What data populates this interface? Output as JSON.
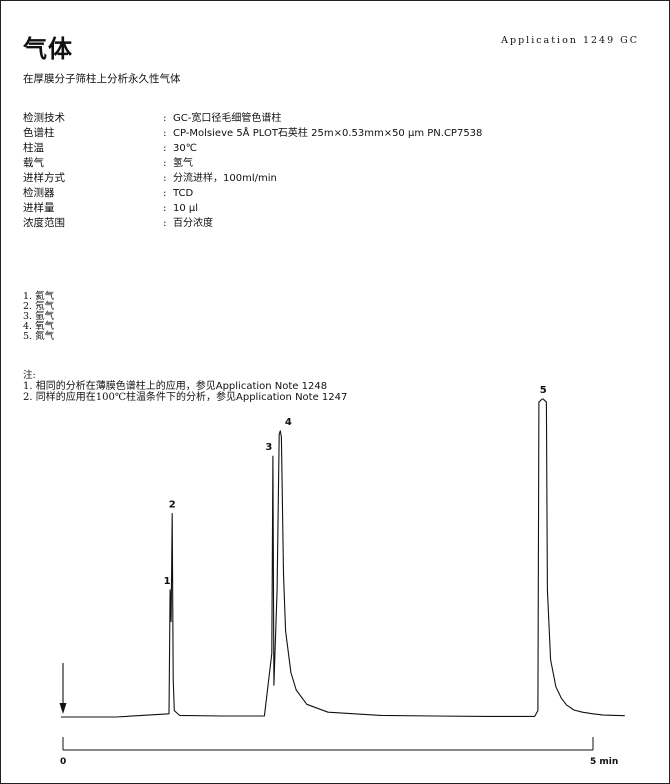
{
  "header": {
    "title": "气体",
    "application_no": "Application 1249 GC",
    "subtitle": "在厚膜分子筛柱上分析永久性气体"
  },
  "conditions": [
    {
      "label": "检测技术",
      "value": "GC-宽口径毛细管色谱柱"
    },
    {
      "label": "色谱柱",
      "value": "CP-Molsieve 5Å PLOT石英柱 25m×0.53mm×50 μm  PN.CP7538"
    },
    {
      "label": "柱温",
      "value": "30℃"
    },
    {
      "label": "载气",
      "value": "氢气"
    },
    {
      "label": "进样方式",
      "value": "分流进样，100ml/min"
    },
    {
      "label": "检测器",
      "value": "TCD"
    },
    {
      "label": "进样量",
      "value": "10 μl"
    },
    {
      "label": "浓度范围",
      "value": "百分浓度"
    }
  ],
  "colon": ":",
  "peaks": [
    {
      "num": "1",
      "name": "氦气"
    },
    {
      "num": "2",
      "name": "氖气"
    },
    {
      "num": "3",
      "name": "氩气"
    },
    {
      "num": "4",
      "name": "氧气"
    },
    {
      "num": "5",
      "name": "氮气"
    }
  ],
  "notes": {
    "heading": "注:",
    "items": [
      {
        "num": "1.",
        "text": "相同的分析在薄膜色谱柱上的应用，参见",
        "ref": "Application Note 1248"
      },
      {
        "num": "2.",
        "text": "同样的应用在100℃柱温条件下的分析，参见",
        "ref": "Application Note 1247"
      }
    ]
  },
  "chart_data": {
    "type": "line",
    "x_unit": "min",
    "xlim": [
      0,
      5
    ],
    "x_ticks": [
      {
        "value": 0,
        "label": "0"
      },
      {
        "value": 5,
        "label": "5 min"
      }
    ],
    "injection_marker": {
      "x": 0
    },
    "y_scale": "relative detector response (0 = baseline, 1 = tallest peak)",
    "peaks": [
      {
        "label": "1",
        "x": 1.01,
        "height": 0.4
      },
      {
        "label": "2",
        "x": 1.03,
        "height": 0.64
      },
      {
        "label": "3",
        "x": 1.98,
        "height": 0.82
      },
      {
        "label": "4",
        "x": 2.05,
        "height": 0.9
      },
      {
        "label": "5",
        "x": 4.53,
        "height": 1.0
      }
    ],
    "series": [
      {
        "x": [
          -0.02,
          0.5,
          1.0,
          1.01,
          1.02,
          1.03,
          1.04,
          1.05,
          1.1,
          1.5,
          1.9,
          1.97,
          1.98,
          1.99,
          2.02,
          2.04,
          2.05,
          2.06,
          2.08,
          2.1,
          2.15,
          2.2,
          2.3,
          2.5,
          3.0,
          3.5,
          4.0,
          4.45,
          4.48,
          4.49,
          4.52,
          4.53,
          4.56,
          4.57,
          4.6,
          4.65,
          4.7,
          4.75,
          4.82,
          4.9,
          5.0,
          5.1,
          5.3
        ],
        "y": [
          0,
          0,
          0.01,
          0.4,
          0.3,
          0.64,
          0.12,
          0.02,
          0.005,
          0.003,
          0.003,
          0.2,
          0.82,
          0.1,
          0.4,
          0.89,
          0.9,
          0.88,
          0.45,
          0.27,
          0.14,
          0.085,
          0.04,
          0.015,
          0.005,
          0.003,
          0.002,
          0.002,
          0.02,
          0.99,
          1.0,
          1.0,
          0.99,
          0.4,
          0.18,
          0.095,
          0.06,
          0.038,
          0.022,
          0.015,
          0.01,
          0.006,
          0.004
        ]
      }
    ]
  }
}
